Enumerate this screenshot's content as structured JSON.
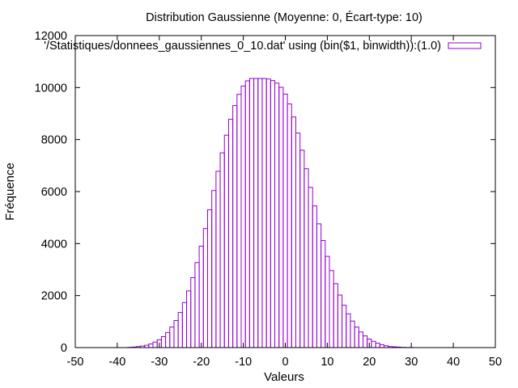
{
  "chart_data": {
    "type": "bar",
    "title": "Distribution Gaussienne (Moyenne: 0, Écart-type: 10)",
    "xlabel": "Valeurs",
    "ylabel": "Fréquence",
    "xlim": [
      -50,
      50
    ],
    "ylim": [
      0,
      12000
    ],
    "xticks": [
      "-50",
      "-40",
      "-30",
      "-20",
      "-10",
      "0",
      "10",
      "20",
      "30",
      "40",
      "50"
    ],
    "yticks": [
      "0",
      "2000",
      "4000",
      "6000",
      "8000",
      "10000",
      "12000"
    ],
    "grid": false,
    "legend_position": "top-right",
    "bar_color": "#9400d3",
    "bin_width": 1,
    "series": [
      {
        "name": "'/Statistiques/donnees_gaussiennes_0_10.dat' using (bin($1, binwidth)):(1.0)",
        "x": [
          -37,
          -36,
          -35,
          -34,
          -33,
          -32,
          -31,
          -30,
          -29,
          -28,
          -27,
          -26,
          -25,
          -24,
          -23,
          -22,
          -21,
          -20,
          -19,
          -18,
          -17,
          -16,
          -15,
          -14,
          -13,
          -12,
          -11,
          -10,
          -9,
          -8,
          -7,
          -6,
          -5,
          -4,
          -3,
          -2,
          -1,
          0,
          1,
          2,
          3,
          4,
          5,
          6,
          7,
          8,
          9,
          10,
          11,
          12,
          13,
          14,
          15,
          16,
          17,
          18,
          19,
          20,
          21,
          22,
          23,
          24,
          25,
          26,
          27,
          28,
          29,
          30,
          31,
          32,
          33,
          34,
          35,
          36
        ],
        "values": [
          10,
          20,
          40,
          60,
          90,
          140,
          210,
          300,
          420,
          580,
          790,
          1040,
          1350,
          1730,
          2180,
          2690,
          3270,
          3900,
          4580,
          5300,
          6040,
          6780,
          7490,
          8170,
          8780,
          9310,
          9740,
          10060,
          10260,
          10350,
          10350,
          10350,
          10350,
          10330,
          10270,
          10170,
          10010,
          9750,
          9370,
          8870,
          8250,
          7590,
          6880,
          6160,
          5450,
          4760,
          4120,
          3510,
          2960,
          2460,
          2020,
          1630,
          1300,
          1020,
          790,
          600,
          450,
          330,
          240,
          170,
          110,
          70,
          40,
          30,
          20,
          10,
          5,
          5,
          0,
          0,
          0,
          0,
          0,
          0
        ]
      }
    ]
  }
}
